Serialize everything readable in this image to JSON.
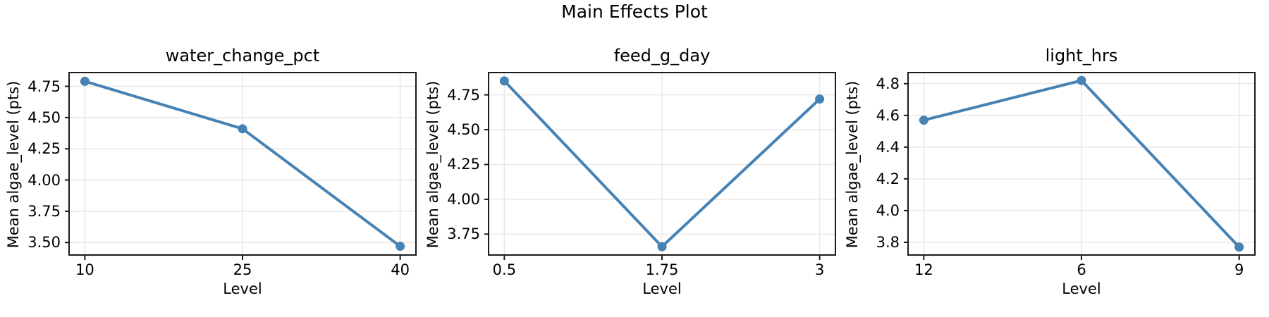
{
  "title": "Main Effects Plot",
  "colors": {
    "line": "#4682B4",
    "marker": "#4682B4",
    "grid": "#e8e8e8",
    "spine": "#1a1a1a",
    "text": "#000000",
    "background": "#ffffff"
  },
  "chart_data": [
    {
      "type": "line",
      "title": "water_change_pct",
      "xlabel": "Level",
      "ylabel": "Mean algae_level (pts)",
      "categories": [
        "10",
        "25",
        "40"
      ],
      "values": [
        4.79,
        4.41,
        3.47
      ],
      "yticks": [
        3.5,
        3.75,
        4.0,
        4.25,
        4.5,
        4.75
      ],
      "ytick_labels": [
        "3.50",
        "3.75",
        "4.00",
        "4.25",
        "4.50",
        "4.75"
      ],
      "ylim": [
        3.4,
        4.86
      ],
      "grid": true,
      "legend": null
    },
    {
      "type": "line",
      "title": "feed_g_day",
      "xlabel": "Level",
      "ylabel": "Mean algae_level (pts)",
      "categories": [
        "0.5",
        "1.75",
        "3"
      ],
      "values": [
        4.85,
        3.66,
        4.72
      ],
      "yticks": [
        3.75,
        4.0,
        4.25,
        4.5,
        4.75
      ],
      "ytick_labels": [
        "3.75",
        "4.00",
        "4.25",
        "4.50",
        "4.75"
      ],
      "ylim": [
        3.6,
        4.91
      ],
      "grid": true,
      "legend": null
    },
    {
      "type": "line",
      "title": "light_hrs",
      "xlabel": "Level",
      "ylabel": "Mean algae_level (pts)",
      "categories": [
        "12",
        "6",
        "9"
      ],
      "values": [
        4.57,
        4.82,
        3.77
      ],
      "yticks": [
        3.8,
        4.0,
        4.2,
        4.4,
        4.6,
        4.8
      ],
      "ytick_labels": [
        "3.8",
        "4.0",
        "4.2",
        "4.4",
        "4.6",
        "4.8"
      ],
      "ylim": [
        3.72,
        4.87
      ],
      "grid": true,
      "legend": null
    }
  ]
}
